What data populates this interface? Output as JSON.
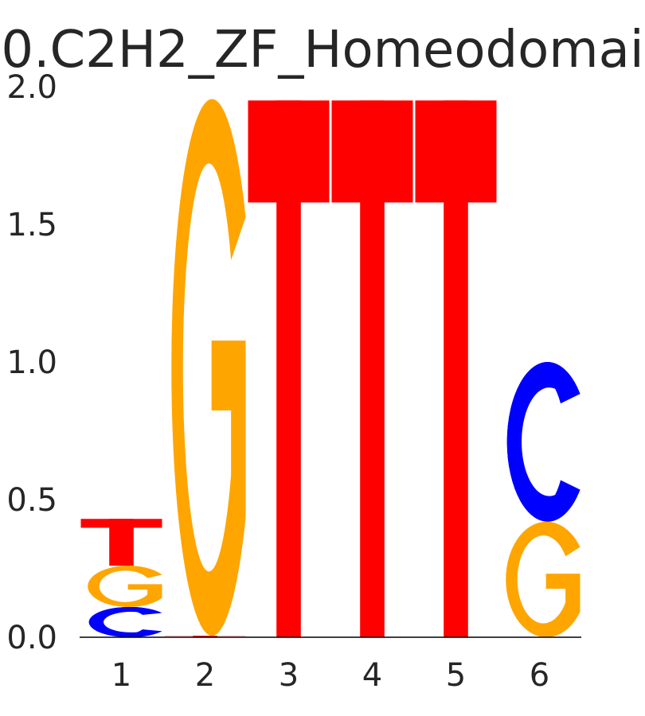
{
  "chart_data": {
    "type": "sequence-logo",
    "title": "0.C2H2_ZF_Homeodomai",
    "xlabel": "",
    "ylabel": "",
    "ylim": [
      0,
      2
    ],
    "yticks": [
      "0.0",
      "0.5",
      "1.0",
      "1.5",
      "2.0"
    ],
    "grid": false,
    "legend": "none",
    "colors": {
      "A": "#008000",
      "C": "#0000ff",
      "G": "#ffa500",
      "T": "#ff0000"
    },
    "positions": [
      {
        "label": "1",
        "letters": [
          {
            "base": "C",
            "height": 0.11
          },
          {
            "base": "G",
            "height": 0.15
          },
          {
            "base": "T",
            "height": 0.17
          }
        ]
      },
      {
        "label": "2",
        "letters": [
          {
            "base": "T",
            "height": 0.005
          },
          {
            "base": "G",
            "height": 1.95
          }
        ]
      },
      {
        "label": "3",
        "letters": [
          {
            "base": "T",
            "height": 1.95
          }
        ]
      },
      {
        "label": "4",
        "letters": [
          {
            "base": "T",
            "height": 1.95
          }
        ]
      },
      {
        "label": "5",
        "letters": [
          {
            "base": "T",
            "height": 1.95
          }
        ]
      },
      {
        "label": "6",
        "letters": [
          {
            "base": "G",
            "height": 0.42
          },
          {
            "base": "C",
            "height": 0.58
          }
        ]
      }
    ]
  }
}
